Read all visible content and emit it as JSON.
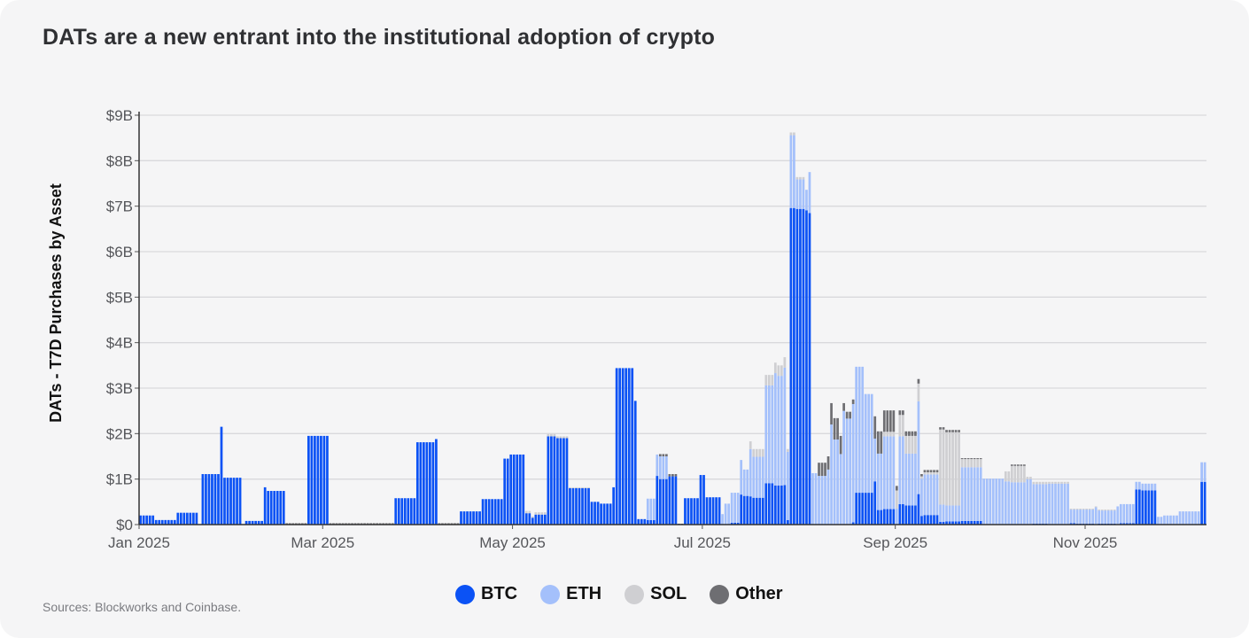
{
  "title": "DATs are a new entrant into the institutional adoption of crypto",
  "source": "Sources: Blockworks and Coinbase.",
  "chart_data": {
    "type": "bar",
    "stacked": true,
    "title": "DATs are a new entrant into the institutional adoption of crypto",
    "ylabel": "DATs - T7D Purchases by Asset",
    "xlabel": "",
    "ylim": [
      0,
      9
    ],
    "y_unit": "$B",
    "y_ticks": [
      "$0",
      "$1B",
      "$2B",
      "$3B",
      "$4B",
      "$5B",
      "$6B",
      "$7B",
      "$8B",
      "$9B"
    ],
    "x_ticks": [
      {
        "label": "Jan 2025",
        "date": "2025-01-01"
      },
      {
        "label": "Mar 2025",
        "date": "2025-03-01"
      },
      {
        "label": "May 2025",
        "date": "2025-05-01"
      },
      {
        "label": "Jul 2025",
        "date": "2025-07-01"
      },
      {
        "label": "Sep 2025",
        "date": "2025-09-01"
      },
      {
        "label": "Nov 2025",
        "date": "2025-11-01"
      }
    ],
    "x_range": [
      "2025-01-01",
      "2025-12-09"
    ],
    "grid": true,
    "legend_position": "bottom",
    "series": [
      {
        "name": "BTC",
        "color": "#0b52f5"
      },
      {
        "name": "ETH",
        "color": "#a4c0fb"
      },
      {
        "name": "SOL",
        "color": "#cfcfd2"
      },
      {
        "name": "Other",
        "color": "#6e6e72"
      }
    ],
    "segment_columns": [
      "start",
      "end",
      "BTC",
      "ETH",
      "SOL",
      "Other"
    ],
    "segments": [
      [
        "2025-01-01",
        "2025-01-05",
        0.2,
        0,
        0,
        0
      ],
      [
        "2025-01-06",
        "2025-01-12",
        0.1,
        0,
        0,
        0
      ],
      [
        "2025-01-13",
        "2025-01-19",
        0.26,
        0,
        0,
        0
      ],
      [
        "2025-01-21",
        "2025-01-26",
        1.11,
        0,
        0,
        0
      ],
      [
        "2025-01-27",
        "2025-01-27",
        2.15,
        0,
        0,
        0
      ],
      [
        "2025-01-28",
        "2025-02-02",
        1.03,
        0,
        0,
        0
      ],
      [
        "2025-02-04",
        "2025-02-09",
        0.08,
        0,
        0,
        0
      ],
      [
        "2025-02-10",
        "2025-02-10",
        0.82,
        0,
        0,
        0
      ],
      [
        "2025-02-11",
        "2025-02-16",
        0.74,
        0,
        0,
        0
      ],
      [
        "2025-02-17",
        "2025-02-23",
        0,
        0,
        0,
        0.03
      ],
      [
        "2025-02-24",
        "2025-03-02",
        1.95,
        0,
        0,
        0
      ],
      [
        "2025-03-03",
        "2025-03-23",
        0,
        0,
        0,
        0.03
      ],
      [
        "2025-03-24",
        "2025-03-30",
        0.58,
        0,
        0,
        0
      ],
      [
        "2025-03-31",
        "2025-04-05",
        1.81,
        0,
        0,
        0
      ],
      [
        "2025-04-06",
        "2025-04-06",
        1.88,
        0,
        0,
        0
      ],
      [
        "2025-04-07",
        "2025-04-13",
        0,
        0,
        0,
        0.03
      ],
      [
        "2025-04-14",
        "2025-04-20",
        0.29,
        0,
        0,
        0
      ],
      [
        "2025-04-21",
        "2025-04-27",
        0.56,
        0,
        0,
        0
      ],
      [
        "2025-04-28",
        "2025-04-29",
        1.45,
        0,
        0,
        0
      ],
      [
        "2025-04-30",
        "2025-05-04",
        1.54,
        0,
        0,
        0
      ],
      [
        "2025-05-05",
        "2025-05-06",
        0.25,
        0,
        0.05,
        0
      ],
      [
        "2025-05-07",
        "2025-05-07",
        0.15,
        0,
        0.03,
        0
      ],
      [
        "2025-05-08",
        "2025-05-11",
        0.22,
        0,
        0.05,
        0
      ],
      [
        "2025-05-12",
        "2025-05-14",
        1.94,
        0,
        0.05,
        0
      ],
      [
        "2025-05-15",
        "2025-05-18",
        1.9,
        0,
        0.04,
        0
      ],
      [
        "2025-05-19",
        "2025-05-25",
        0.8,
        0,
        0.02,
        0
      ],
      [
        "2025-05-26",
        "2025-05-28",
        0.5,
        0,
        0,
        0
      ],
      [
        "2025-05-29",
        "2025-06-01",
        0.46,
        0,
        0,
        0
      ],
      [
        "2025-06-02",
        "2025-06-02",
        0.82,
        0,
        0,
        0
      ],
      [
        "2025-06-03",
        "2025-06-08",
        3.44,
        0,
        0,
        0
      ],
      [
        "2025-06-09",
        "2025-06-09",
        2.72,
        0,
        0,
        0
      ],
      [
        "2025-06-10",
        "2025-06-12",
        0.12,
        0,
        0,
        0
      ],
      [
        "2025-06-13",
        "2025-06-15",
        0.1,
        0.47,
        0,
        0
      ],
      [
        "2025-06-16",
        "2025-06-16",
        1.07,
        0.47,
        0,
        0
      ],
      [
        "2025-06-17",
        "2025-06-19",
        1.0,
        0.5,
        0,
        0.05
      ],
      [
        "2025-06-20",
        "2025-06-22",
        1.06,
        0,
        0,
        0.05
      ],
      [
        "2025-06-23",
        "2025-06-24",
        0,
        0,
        0,
        0.02
      ],
      [
        "2025-06-25",
        "2025-06-29",
        0.58,
        0,
        0,
        0
      ],
      [
        "2025-06-30",
        "2025-07-01",
        1.09,
        0,
        0,
        0
      ],
      [
        "2025-07-02",
        "2025-07-06",
        0.6,
        0,
        0,
        0
      ],
      [
        "2025-07-07",
        "2025-07-07",
        0,
        0.23,
        0,
        0
      ],
      [
        "2025-07-08",
        "2025-07-09",
        0,
        0.46,
        0,
        0
      ],
      [
        "2025-07-10",
        "2025-07-12",
        0.04,
        0.66,
        0,
        0
      ],
      [
        "2025-07-13",
        "2025-07-13",
        0.66,
        0.76,
        0,
        0
      ],
      [
        "2025-07-14",
        "2025-07-15",
        0.63,
        0.58,
        0,
        0
      ],
      [
        "2025-07-16",
        "2025-07-16",
        0.62,
        1.04,
        0.17,
        0
      ],
      [
        "2025-07-17",
        "2025-07-20",
        0.59,
        0.9,
        0.17,
        0
      ],
      [
        "2025-07-21",
        "2025-07-23",
        0.91,
        2.15,
        0.23,
        0
      ],
      [
        "2025-07-24",
        "2025-07-24",
        0.86,
        2.47,
        0.23,
        0
      ],
      [
        "2025-07-25",
        "2025-07-26",
        0.86,
        2.41,
        0.23,
        0
      ],
      [
        "2025-07-27",
        "2025-07-27",
        0.87,
        2.58,
        0.23,
        0
      ],
      [
        "2025-07-28",
        "2025-07-28",
        0.1,
        1.5,
        0.06,
        0
      ],
      [
        "2025-07-29",
        "2025-07-30",
        6.96,
        1.6,
        0.06,
        0
      ],
      [
        "2025-07-31",
        "2025-08-02",
        6.94,
        0.65,
        0.05,
        0
      ],
      [
        "2025-08-03",
        "2025-08-03",
        6.91,
        0.45,
        0,
        0
      ],
      [
        "2025-08-04",
        "2025-08-04",
        6.85,
        0.9,
        0,
        0
      ],
      [
        "2025-08-05",
        "2025-08-06",
        0,
        1.13,
        0,
        0
      ],
      [
        "2025-08-07",
        "2025-08-09",
        0,
        1.07,
        0,
        0.29
      ],
      [
        "2025-08-10",
        "2025-08-10",
        0,
        1.21,
        0,
        0.29
      ],
      [
        "2025-08-11",
        "2025-08-11",
        0,
        2.2,
        0,
        0.47
      ],
      [
        "2025-08-12",
        "2025-08-13",
        0,
        1.87,
        0,
        0.47
      ],
      [
        "2025-08-14",
        "2025-08-14",
        0,
        1.55,
        0,
        0.4
      ],
      [
        "2025-08-15",
        "2025-08-15",
        0,
        2.5,
        0,
        0.17
      ],
      [
        "2025-08-16",
        "2025-08-17",
        0,
        2.33,
        0,
        0.15
      ],
      [
        "2025-08-18",
        "2025-08-18",
        0.05,
        2.6,
        0,
        0.1
      ],
      [
        "2025-08-19",
        "2025-08-21",
        0.7,
        2.77,
        0,
        0
      ],
      [
        "2025-08-22",
        "2025-08-24",
        0.7,
        2.17,
        0,
        0
      ],
      [
        "2025-08-25",
        "2025-08-25",
        0.95,
        0.94,
        0,
        0.49
      ],
      [
        "2025-08-26",
        "2025-08-27",
        0.32,
        1.24,
        0,
        0.49
      ],
      [
        "2025-08-28",
        "2025-08-31",
        0.34,
        1.6,
        0.1,
        0.47
      ],
      [
        "2025-09-01",
        "2025-09-01",
        0,
        0.35,
        0.4,
        0.1
      ],
      [
        "2025-09-02",
        "2025-09-03",
        0.45,
        1.49,
        0.47,
        0.1
      ],
      [
        "2025-09-04",
        "2025-09-07",
        0.42,
        1.14,
        0.39,
        0.1
      ],
      [
        "2025-09-08",
        "2025-09-08",
        0.67,
        2.04,
        0.39,
        0.1
      ],
      [
        "2025-09-09",
        "2025-09-09",
        0.19,
        0.82,
        0.05,
        0.05
      ],
      [
        "2025-09-10",
        "2025-09-14",
        0.21,
        0.89,
        0.05,
        0.05
      ],
      [
        "2025-09-15",
        "2025-09-16",
        0.06,
        0.38,
        1.65,
        0.05
      ],
      [
        "2025-09-17",
        "2025-09-21",
        0.07,
        0.35,
        1.61,
        0.05
      ],
      [
        "2025-09-22",
        "2025-09-28",
        0.08,
        1.18,
        0.18,
        0.02
      ],
      [
        "2025-09-29",
        "2025-10-05",
        0,
        1.01,
        0,
        0
      ],
      [
        "2025-10-06",
        "2025-10-07",
        0,
        0.95,
        0.22,
        0
      ],
      [
        "2025-10-08",
        "2025-10-12",
        0,
        0.93,
        0.36,
        0.03
      ],
      [
        "2025-10-13",
        "2025-10-14",
        0,
        1.0,
        0.05,
        0
      ],
      [
        "2025-10-15",
        "2025-10-19",
        0.02,
        0.87,
        0.05,
        0
      ],
      [
        "2025-10-20",
        "2025-10-26",
        0,
        0.9,
        0.04,
        0
      ],
      [
        "2025-10-27",
        "2025-10-28",
        0.03,
        0.3,
        0.02,
        0
      ],
      [
        "2025-10-29",
        "2025-11-03",
        0.02,
        0.31,
        0.02,
        0
      ],
      [
        "2025-11-04",
        "2025-11-04",
        0,
        0.38,
        0.02,
        0
      ],
      [
        "2025-11-05",
        "2025-11-10",
        0.02,
        0.29,
        0.02,
        0
      ],
      [
        "2025-11-11",
        "2025-11-11",
        0,
        0.4,
        0,
        0
      ],
      [
        "2025-11-12",
        "2025-11-16",
        0.03,
        0.42,
        0,
        0
      ],
      [
        "2025-11-17",
        "2025-11-18",
        0.77,
        0.17,
        0,
        0
      ],
      [
        "2025-11-19",
        "2025-11-23",
        0.75,
        0.15,
        0,
        0
      ],
      [
        "2025-11-24",
        "2025-11-25",
        0,
        0.17,
        0,
        0
      ],
      [
        "2025-11-26",
        "2025-11-30",
        0,
        0.2,
        0,
        0
      ],
      [
        "2025-12-01",
        "2025-12-07",
        0,
        0.29,
        0,
        0
      ],
      [
        "2025-12-08",
        "2025-12-09",
        0.94,
        0.43,
        0,
        0
      ]
    ]
  }
}
